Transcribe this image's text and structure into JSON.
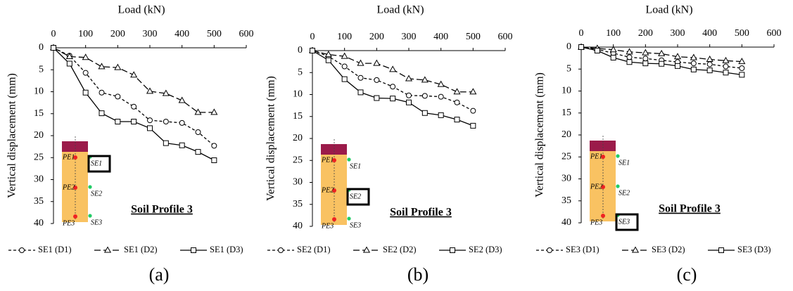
{
  "chart_data": [
    {
      "type": "line",
      "x_label": "Load (kN)",
      "y_label": "Vertical displacement (mm)",
      "panel_label": "(a)",
      "annotation": "Soil Profile 3",
      "xlim": [
        0,
        600
      ],
      "xticks": [
        0,
        100,
        200,
        300,
        400,
        500,
        600
      ],
      "ylim": [
        0,
        40
      ],
      "yticks": [
        0,
        5,
        10,
        15,
        20,
        25,
        30,
        35,
        40
      ],
      "y_inverted": true,
      "x": [
        0,
        50,
        100,
        150,
        200,
        250,
        300,
        350,
        400,
        450,
        500
      ],
      "series": [
        {
          "name": "SE1 (D1)",
          "color": "#000000",
          "dash": "dashed",
          "marker": "circle",
          "values": [
            0,
            1.8,
            5.7,
            10.2,
            11.1,
            13.4,
            16.5,
            16.8,
            17.1,
            19.2,
            22.3
          ]
        },
        {
          "name": "SE1 (D2)",
          "color": "#000000",
          "dash": "longdash",
          "marker": "triangle",
          "values": [
            0,
            2,
            2.2,
            4.3,
            4.5,
            6.2,
            9.9,
            10.4,
            12,
            14.7,
            14.7
          ]
        },
        {
          "name": "SE1 (D3)",
          "color": "#000000",
          "dash": "solid",
          "marker": "square",
          "values": [
            0,
            3.6,
            10.2,
            14.9,
            16.8,
            16.8,
            18.3,
            21.7,
            22.2,
            23.7,
            25.6
          ]
        }
      ],
      "inset": {
        "pe_labels": [
          "PE1",
          "PE2",
          "PE3"
        ],
        "se_labels": [
          "SE1",
          "SE2",
          "SE3"
        ],
        "highlight": 0
      }
    },
    {
      "type": "line",
      "x_label": "Load (kN)",
      "y_label": "Vertical displacement (mm)",
      "panel_label": "(b)",
      "annotation": "Soil Profile 3",
      "xlim": [
        0,
        600
      ],
      "xticks": [
        0,
        100,
        200,
        300,
        400,
        500,
        600
      ],
      "ylim": [
        0,
        40
      ],
      "yticks": [
        0,
        5,
        10,
        15,
        20,
        25,
        30,
        35,
        40
      ],
      "y_inverted": true,
      "x": [
        0,
        50,
        100,
        150,
        200,
        250,
        300,
        350,
        400,
        450,
        500
      ],
      "series": [
        {
          "name": "SE2 (D1)",
          "color": "#000000",
          "dash": "dashed",
          "marker": "circle",
          "values": [
            0,
            1.3,
            3.6,
            6.2,
            6.7,
            8.2,
            10.2,
            10.3,
            10.5,
            11.8,
            13.7
          ]
        },
        {
          "name": "SE2 (D2)",
          "color": "#000000",
          "dash": "longdash",
          "marker": "triangle",
          "values": [
            0,
            0.9,
            1.3,
            2.9,
            2.9,
            4.3,
            6.4,
            6.7,
            7.7,
            9.4,
            9.4
          ]
        },
        {
          "name": "SE2 (D3)",
          "color": "#000000",
          "dash": "solid",
          "marker": "square",
          "values": [
            0,
            2.2,
            6.5,
            9.5,
            10.8,
            10.9,
            11.8,
            14.2,
            14.7,
            15.7,
            17.1
          ]
        }
      ],
      "inset": {
        "pe_labels": [
          "PE1",
          "PE2",
          "PE3"
        ],
        "se_labels": [
          "SE1",
          "SE2",
          "SE3"
        ],
        "highlight": 1
      }
    },
    {
      "type": "line",
      "x_label": "Load (kN)",
      "y_label": "Vertical displacement (mm)",
      "panel_label": "(c)",
      "annotation": "Soil Profile 3",
      "xlim": [
        0,
        600
      ],
      "xticks": [
        0,
        100,
        200,
        300,
        400,
        500,
        600
      ],
      "ylim": [
        0,
        40
      ],
      "yticks": [
        0,
        5,
        10,
        15,
        20,
        25,
        30,
        35,
        40
      ],
      "y_inverted": true,
      "x": [
        0,
        50,
        100,
        150,
        200,
        250,
        300,
        350,
        400,
        450,
        500
      ],
      "series": [
        {
          "name": "SE3 (D1)",
          "color": "#000000",
          "dash": "dashed",
          "marker": "circle",
          "values": [
            0,
            0.5,
            1.4,
            2.3,
            2.6,
            3,
            3.4,
            3.7,
            3.9,
            4.4,
            4.8
          ]
        },
        {
          "name": "SE3 (D2)",
          "color": "#000000",
          "dash": "longdash",
          "marker": "triangle",
          "values": [
            0,
            0.3,
            0.6,
            1.1,
            1.3,
            1.5,
            2.2,
            2.4,
            2.8,
            3.1,
            3.3
          ]
        },
        {
          "name": "SE3 (D3)",
          "color": "#000000",
          "dash": "solid",
          "marker": "square",
          "values": [
            0,
            0.8,
            2.4,
            3.4,
            3.7,
            3.8,
            4.3,
            5.1,
            5.3,
            5.8,
            6.3
          ]
        }
      ],
      "inset": {
        "pe_labels": [
          "PE1",
          "PE2",
          "PE3"
        ],
        "se_labels": [
          "SE1",
          "SE2",
          "SE3"
        ],
        "highlight": 2
      }
    }
  ]
}
